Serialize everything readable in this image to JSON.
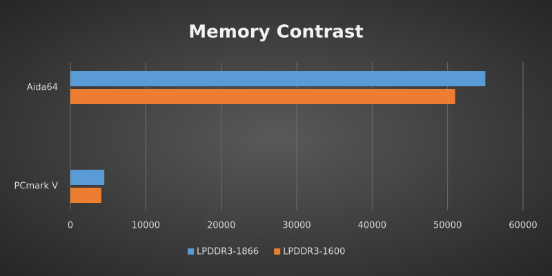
{
  "chart_data": {
    "type": "hbar",
    "title": "Memory Contrast",
    "categories": [
      "Aida64",
      "PCmark V"
    ],
    "series": [
      {
        "name": "LPDDR3-1866",
        "color": "#5b9bd5",
        "values": [
          55000,
          4500
        ]
      },
      {
        "name": "LPDDR3-1600",
        "color": "#ed7d31",
        "values": [
          51000,
          4100
        ]
      }
    ],
    "xlim": [
      0,
      60000
    ],
    "xticks": [
      0,
      10000,
      20000,
      30000,
      40000,
      50000,
      60000
    ],
    "grid": true,
    "legend": "bottom"
  }
}
